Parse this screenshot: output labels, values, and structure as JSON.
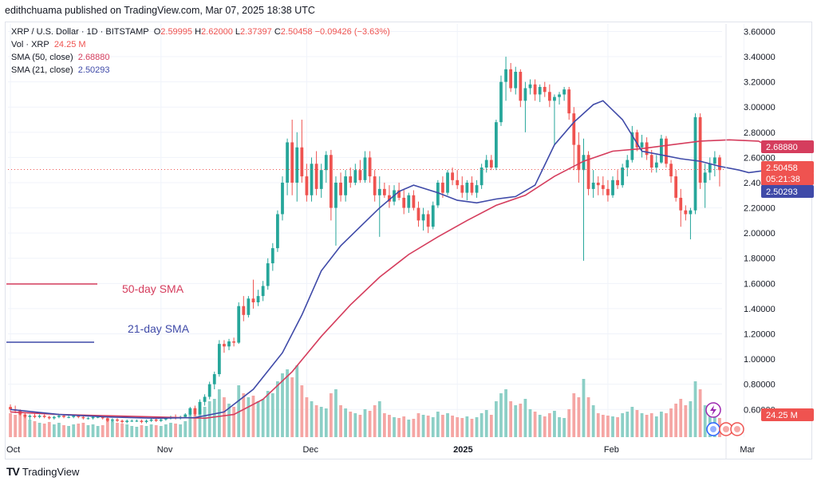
{
  "header": {
    "publisher_line": "edithchuama published on TradingView.com, Mar 07, 2025 18:38 UTC"
  },
  "legend": {
    "symbol": "XRP / U.S. Dollar · 1D · BITSTAMP",
    "open_label": "O",
    "open": "2.59995",
    "high_label": "H",
    "high": "2.62000",
    "low_label": "L",
    "low": "2.37397",
    "close_label": "C",
    "close": "2.50458",
    "change": "−0.09426 (−3.63%)",
    "vol_label": "Vol · XRP",
    "vol_value": "24.25 M",
    "sma50_label": "SMA (50, close)",
    "sma50_value": "2.68880",
    "sma21_label": "SMA (21, close)",
    "sma21_value": "2.50293"
  },
  "annotations": {
    "sma50_text": "50-day SMA",
    "sma21_text": "21-day SMA"
  },
  "footer": {
    "brand": "TradingView",
    "logo_text": "TV"
  },
  "colors": {
    "up": "#26a69a",
    "down": "#ef5350",
    "vol_up": "#8ccfc6",
    "vol_down": "#f5a6a4",
    "sma50": "#d53d5d",
    "sma21": "#3f4aa8"
  },
  "chart_data": {
    "type": "candlestick",
    "symbol": "XRP / U.S. Dollar",
    "interval": "1D",
    "exchange": "BITSTAMP",
    "y_ticks": [
      "3.60000",
      "3.40000",
      "3.20000",
      "3.00000",
      "2.80000",
      "2.60000",
      "2.40000",
      "2.20000",
      "2.00000",
      "1.80000",
      "1.60000",
      "1.40000",
      "1.20000",
      "1.00000",
      "0.80000",
      "0.60000"
    ],
    "ylim": [
      0.38,
      3.66
    ],
    "x_labels": [
      {
        "label": "Oct",
        "index": 0
      },
      {
        "label": "Nov",
        "index": 31
      },
      {
        "label": "Dec",
        "index": 61
      },
      {
        "label": "2025",
        "index": 92
      },
      {
        "label": "Feb",
        "index": 123
      },
      {
        "label": "Mar",
        "index": 151
      }
    ],
    "price_tags": [
      {
        "text": "2.68880",
        "value": 2.6888,
        "color": "#d53d5d"
      },
      {
        "text": "2.50458",
        "value": 2.50458,
        "color": "#ef5350"
      },
      {
        "text": "05:21:38",
        "value": 2.43,
        "color": "#ef5350"
      },
      {
        "text": "2.50293",
        "value": 2.50293,
        "color": "#3f4aa8"
      }
    ],
    "volume_tag": "24.25 M",
    "last_price": 2.50458,
    "volume_max": 100,
    "sma21": [
      [
        0,
        0.6
      ],
      [
        10,
        0.56
      ],
      [
        20,
        0.54
      ],
      [
        30,
        0.53
      ],
      [
        38,
        0.535
      ],
      [
        44,
        0.58
      ],
      [
        50,
        0.76
      ],
      [
        56,
        1.05
      ],
      [
        60,
        1.35
      ],
      [
        64,
        1.7
      ],
      [
        68,
        1.9
      ],
      [
        72,
        2.05
      ],
      [
        76,
        2.2
      ],
      [
        80,
        2.33
      ],
      [
        83,
        2.38
      ],
      [
        88,
        2.32
      ],
      [
        92,
        2.26
      ],
      [
        96,
        2.24
      ],
      [
        100,
        2.27
      ],
      [
        104,
        2.29
      ],
      [
        108,
        2.38
      ],
      [
        112,
        2.7
      ],
      [
        116,
        2.88
      ],
      [
        120,
        3.02
      ],
      [
        122,
        3.05
      ],
      [
        126,
        2.9
      ],
      [
        130,
        2.65
      ],
      [
        134,
        2.62
      ],
      [
        138,
        2.59
      ],
      [
        142,
        2.57
      ],
      [
        146,
        2.53
      ],
      [
        150,
        2.5
      ],
      [
        152,
        2.48
      ],
      [
        156,
        2.5
      ]
    ],
    "sma50": [
      [
        0,
        0.58
      ],
      [
        10,
        0.56
      ],
      [
        20,
        0.55
      ],
      [
        30,
        0.54
      ],
      [
        40,
        0.53
      ],
      [
        46,
        0.56
      ],
      [
        52,
        0.68
      ],
      [
        58,
        0.9
      ],
      [
        64,
        1.18
      ],
      [
        70,
        1.43
      ],
      [
        76,
        1.65
      ],
      [
        82,
        1.83
      ],
      [
        88,
        1.97
      ],
      [
        94,
        2.1
      ],
      [
        100,
        2.22
      ],
      [
        106,
        2.3
      ],
      [
        112,
        2.45
      ],
      [
        118,
        2.57
      ],
      [
        124,
        2.65
      ],
      [
        130,
        2.67
      ],
      [
        136,
        2.7
      ],
      [
        142,
        2.73
      ],
      [
        148,
        2.74
      ],
      [
        154,
        2.73
      ],
      [
        156,
        2.69
      ]
    ],
    "candles": [
      [
        0.62,
        0.64,
        0.58,
        0.6,
        30
      ],
      [
        0.6,
        0.63,
        0.57,
        0.59,
        28
      ],
      [
        0.59,
        0.6,
        0.55,
        0.56,
        34
      ],
      [
        0.56,
        0.58,
        0.53,
        0.54,
        25
      ],
      [
        0.54,
        0.56,
        0.52,
        0.55,
        22
      ],
      [
        0.55,
        0.57,
        0.53,
        0.54,
        20
      ],
      [
        0.54,
        0.56,
        0.53,
        0.55,
        18
      ],
      [
        0.55,
        0.56,
        0.53,
        0.54,
        17
      ],
      [
        0.54,
        0.55,
        0.52,
        0.53,
        19
      ],
      [
        0.53,
        0.55,
        0.52,
        0.54,
        16
      ],
      [
        0.54,
        0.56,
        0.53,
        0.55,
        18
      ],
      [
        0.55,
        0.56,
        0.53,
        0.54,
        15
      ],
      [
        0.54,
        0.55,
        0.53,
        0.54,
        14
      ],
      [
        0.54,
        0.56,
        0.53,
        0.55,
        16
      ],
      [
        0.55,
        0.56,
        0.53,
        0.54,
        17
      ],
      [
        0.54,
        0.55,
        0.52,
        0.53,
        18
      ],
      [
        0.53,
        0.54,
        0.52,
        0.53,
        15
      ],
      [
        0.53,
        0.55,
        0.52,
        0.54,
        16
      ],
      [
        0.54,
        0.55,
        0.53,
        0.54,
        14
      ],
      [
        0.54,
        0.55,
        0.52,
        0.53,
        15
      ],
      [
        0.53,
        0.54,
        0.5,
        0.51,
        22
      ],
      [
        0.51,
        0.53,
        0.5,
        0.52,
        20
      ],
      [
        0.52,
        0.53,
        0.5,
        0.51,
        18
      ],
      [
        0.51,
        0.52,
        0.49,
        0.5,
        17
      ],
      [
        0.5,
        0.52,
        0.49,
        0.51,
        16
      ],
      [
        0.51,
        0.52,
        0.5,
        0.51,
        14
      ],
      [
        0.51,
        0.52,
        0.5,
        0.51,
        13
      ],
      [
        0.51,
        0.52,
        0.49,
        0.5,
        15
      ],
      [
        0.5,
        0.52,
        0.49,
        0.51,
        14
      ],
      [
        0.51,
        0.53,
        0.5,
        0.52,
        16
      ],
      [
        0.52,
        0.53,
        0.5,
        0.51,
        15
      ],
      [
        0.51,
        0.53,
        0.5,
        0.52,
        14
      ],
      [
        0.52,
        0.54,
        0.51,
        0.53,
        16
      ],
      [
        0.53,
        0.55,
        0.52,
        0.54,
        18
      ],
      [
        0.54,
        0.56,
        0.52,
        0.53,
        17
      ],
      [
        0.53,
        0.55,
        0.52,
        0.54,
        16
      ],
      [
        0.54,
        0.57,
        0.53,
        0.56,
        20
      ],
      [
        0.56,
        0.62,
        0.55,
        0.61,
        30
      ],
      [
        0.61,
        0.63,
        0.55,
        0.56,
        28
      ],
      [
        0.56,
        0.68,
        0.56,
        0.66,
        35
      ],
      [
        0.66,
        0.72,
        0.63,
        0.7,
        38
      ],
      [
        0.7,
        0.82,
        0.68,
        0.8,
        45
      ],
      [
        0.8,
        0.9,
        0.76,
        0.88,
        48
      ],
      [
        0.88,
        1.15,
        0.86,
        1.12,
        60
      ],
      [
        1.12,
        1.15,
        1.05,
        1.1,
        50
      ],
      [
        1.1,
        1.16,
        1.07,
        1.14,
        42
      ],
      [
        1.14,
        1.17,
        1.1,
        1.13,
        38
      ],
      [
        1.13,
        1.45,
        1.12,
        1.42,
        65
      ],
      [
        1.42,
        1.5,
        1.3,
        1.35,
        55
      ],
      [
        1.35,
        1.5,
        1.33,
        1.48,
        50
      ],
      [
        1.48,
        1.63,
        1.4,
        1.45,
        52
      ],
      [
        1.45,
        1.55,
        1.42,
        1.5,
        45
      ],
      [
        1.5,
        1.62,
        1.46,
        1.58,
        48
      ],
      [
        1.58,
        1.8,
        1.55,
        1.76,
        58
      ],
      [
        1.76,
        1.92,
        1.7,
        1.88,
        55
      ],
      [
        1.88,
        2.18,
        1.85,
        2.15,
        70
      ],
      [
        2.15,
        2.45,
        2.1,
        2.4,
        80
      ],
      [
        2.4,
        2.75,
        2.3,
        2.72,
        85
      ],
      [
        2.72,
        2.9,
        2.3,
        2.4,
        75
      ],
      [
        2.4,
        2.8,
        2.25,
        2.68,
        90
      ],
      [
        2.68,
        2.9,
        2.4,
        2.45,
        65
      ],
      [
        2.45,
        2.55,
        2.25,
        2.3,
        50
      ],
      [
        2.3,
        2.6,
        2.25,
        2.55,
        45
      ],
      [
        2.55,
        2.65,
        2.3,
        2.35,
        40
      ],
      [
        2.35,
        2.55,
        2.28,
        2.5,
        38
      ],
      [
        2.5,
        2.65,
        2.4,
        2.62,
        36
      ],
      [
        2.62,
        2.66,
        2.1,
        2.2,
        55
      ],
      [
        2.2,
        2.45,
        1.9,
        2.4,
        60
      ],
      [
        2.4,
        2.48,
        2.25,
        2.3,
        40
      ],
      [
        2.3,
        2.5,
        2.25,
        2.45,
        36
      ],
      [
        2.45,
        2.52,
        2.36,
        2.4,
        32
      ],
      [
        2.4,
        2.55,
        2.38,
        2.5,
        30
      ],
      [
        2.5,
        2.58,
        2.4,
        2.42,
        28
      ],
      [
        2.42,
        2.65,
        2.4,
        2.6,
        35
      ],
      [
        2.6,
        2.65,
        2.4,
        2.45,
        33
      ],
      [
        2.45,
        2.5,
        2.25,
        2.3,
        40
      ],
      [
        2.3,
        2.45,
        1.97,
        2.35,
        45
      ],
      [
        2.35,
        2.4,
        2.28,
        2.3,
        30
      ],
      [
        2.3,
        2.38,
        2.2,
        2.25,
        28
      ],
      [
        2.25,
        2.38,
        2.22,
        2.34,
        25
      ],
      [
        2.34,
        2.4,
        2.26,
        2.28,
        24
      ],
      [
        2.28,
        2.35,
        2.15,
        2.2,
        26
      ],
      [
        2.2,
        2.32,
        2.16,
        2.3,
        22
      ],
      [
        2.3,
        2.34,
        2.18,
        2.2,
        23
      ],
      [
        2.2,
        2.25,
        2.05,
        2.1,
        30
      ],
      [
        2.1,
        2.2,
        2.02,
        2.15,
        28
      ],
      [
        2.15,
        2.18,
        2.0,
        2.05,
        27
      ],
      [
        2.05,
        2.25,
        2.03,
        2.22,
        25
      ],
      [
        2.22,
        2.42,
        2.2,
        2.4,
        32
      ],
      [
        2.4,
        2.45,
        2.28,
        2.32,
        28
      ],
      [
        2.32,
        2.5,
        2.3,
        2.48,
        30
      ],
      [
        2.48,
        2.52,
        2.38,
        2.42,
        27
      ],
      [
        2.42,
        2.5,
        2.35,
        2.38,
        25
      ],
      [
        2.38,
        2.45,
        2.28,
        2.32,
        24
      ],
      [
        2.32,
        2.42,
        2.26,
        2.4,
        26
      ],
      [
        2.4,
        2.45,
        2.3,
        2.32,
        23
      ],
      [
        2.32,
        2.42,
        2.28,
        2.38,
        25
      ],
      [
        2.38,
        2.55,
        2.35,
        2.52,
        30
      ],
      [
        2.52,
        2.62,
        2.48,
        2.58,
        34
      ],
      [
        2.58,
        2.62,
        2.5,
        2.52,
        28
      ],
      [
        2.52,
        2.9,
        2.5,
        2.88,
        45
      ],
      [
        2.88,
        3.25,
        2.85,
        3.2,
        55
      ],
      [
        3.2,
        3.4,
        3.05,
        3.3,
        60
      ],
      [
        3.3,
        3.35,
        3.12,
        3.15,
        45
      ],
      [
        3.15,
        3.32,
        3.1,
        3.28,
        40
      ],
      [
        3.28,
        3.3,
        3.0,
        3.05,
        42
      ],
      [
        3.05,
        3.2,
        2.8,
        3.15,
        48
      ],
      [
        3.15,
        3.22,
        3.1,
        3.18,
        35
      ],
      [
        3.18,
        3.22,
        3.05,
        3.1,
        32
      ],
      [
        3.1,
        3.18,
        3.04,
        3.16,
        28
      ],
      [
        3.16,
        3.2,
        3.08,
        3.12,
        26
      ],
      [
        3.12,
        3.18,
        3.0,
        3.05,
        30
      ],
      [
        3.05,
        3.1,
        2.7,
        3.08,
        33
      ],
      [
        3.08,
        3.12,
        3.02,
        3.1,
        25
      ],
      [
        3.1,
        3.16,
        3.05,
        3.14,
        24
      ],
      [
        3.14,
        3.16,
        2.9,
        2.95,
        35
      ],
      [
        2.95,
        3.0,
        2.5,
        2.7,
        55
      ],
      [
        2.7,
        2.8,
        2.4,
        2.5,
        50
      ],
      [
        2.5,
        2.75,
        1.78,
        2.62,
        73
      ],
      [
        2.62,
        2.65,
        2.3,
        2.35,
        50
      ],
      [
        2.35,
        2.5,
        2.28,
        2.4,
        40
      ],
      [
        2.4,
        2.45,
        2.3,
        2.38,
        30
      ],
      [
        2.38,
        2.45,
        2.3,
        2.35,
        28
      ],
      [
        2.35,
        2.42,
        2.25,
        2.3,
        27
      ],
      [
        2.3,
        2.45,
        2.28,
        2.42,
        26
      ],
      [
        2.42,
        2.5,
        2.35,
        2.38,
        25
      ],
      [
        2.38,
        2.55,
        2.36,
        2.52,
        30
      ],
      [
        2.52,
        2.62,
        2.45,
        2.58,
        32
      ],
      [
        2.58,
        2.85,
        2.56,
        2.8,
        38
      ],
      [
        2.8,
        2.82,
        2.65,
        2.68,
        34
      ],
      [
        2.68,
        2.78,
        2.6,
        2.72,
        30
      ],
      [
        2.72,
        2.76,
        2.58,
        2.62,
        28
      ],
      [
        2.62,
        2.66,
        2.48,
        2.52,
        30
      ],
      [
        2.52,
        2.62,
        2.48,
        2.56,
        26
      ],
      [
        2.56,
        2.78,
        2.55,
        2.75,
        32
      ],
      [
        2.75,
        2.77,
        2.52,
        2.55,
        30
      ],
      [
        2.55,
        2.58,
        2.4,
        2.45,
        36
      ],
      [
        2.45,
        2.5,
        2.25,
        2.28,
        42
      ],
      [
        2.28,
        2.35,
        2.05,
        2.18,
        48
      ],
      [
        2.18,
        2.22,
        2.1,
        2.15,
        40
      ],
      [
        2.15,
        2.2,
        1.95,
        2.18,
        45
      ],
      [
        2.18,
        2.95,
        2.15,
        2.92,
        70
      ],
      [
        2.92,
        2.95,
        2.35,
        2.4,
        60
      ],
      [
        2.4,
        2.55,
        2.2,
        2.48,
        40
      ],
      [
        2.48,
        2.6,
        2.42,
        2.55,
        35
      ],
      [
        2.55,
        2.65,
        2.45,
        2.6,
        30
      ],
      [
        2.6,
        2.62,
        2.37,
        2.5,
        24
      ]
    ]
  }
}
